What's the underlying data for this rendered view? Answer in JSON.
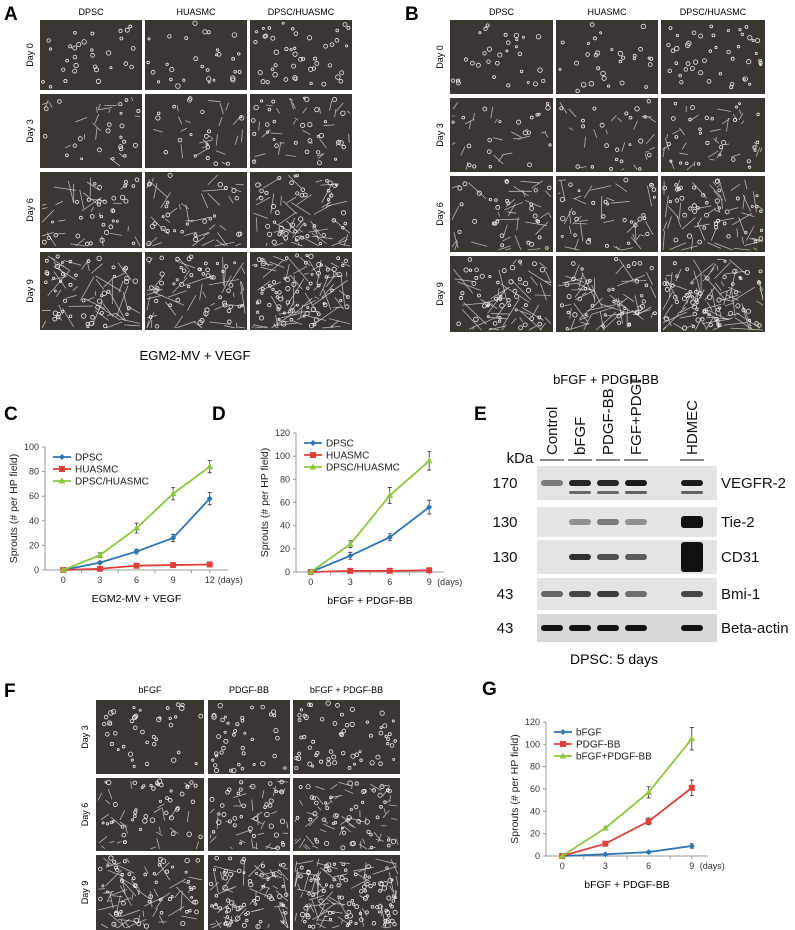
{
  "panels": {
    "A": {
      "label": "A",
      "columns": [
        "DPSC",
        "HUASMC",
        "DPSC/HUASMC"
      ],
      "rows": [
        "Day 0",
        "Day 3",
        "Day 6",
        "Day 9"
      ],
      "caption": "EGM2-MV + VEGF"
    },
    "B": {
      "label": "B",
      "columns": [
        "DPSC",
        "HUASMC",
        "DPSC/HUASMC"
      ],
      "rows": [
        "Day 0",
        "Day 3",
        "Day 6",
        "Day 9"
      ],
      "caption": "bFGF + PDGF-BB"
    },
    "E": {
      "label": "E",
      "kda_label": "kDa",
      "lanes": [
        "Control",
        "bFGF",
        "PDGF-BB",
        "FGF+PDGF",
        "HDMEC"
      ],
      "rows": [
        {
          "protein": "VEGFR-2",
          "kda": "170",
          "band_intensity": [
            0.5,
            0.9,
            0.9,
            0.95,
            0.95
          ]
        },
        {
          "protein": "Tie-2",
          "kda": "130",
          "band_intensity": [
            0.0,
            0.4,
            0.5,
            0.4,
            1.0
          ]
        },
        {
          "protein": "CD31",
          "kda": "130",
          "band_intensity": [
            0.0,
            0.85,
            0.7,
            0.65,
            1.0
          ]
        },
        {
          "protein": "Bmi-1",
          "kda": "43",
          "band_intensity": [
            0.6,
            0.75,
            0.8,
            0.55,
            0.75
          ]
        },
        {
          "protein": "Beta-actin",
          "kda": "43",
          "band_intensity": [
            1.0,
            1.0,
            1.0,
            1.0,
            1.0
          ]
        }
      ],
      "caption": "DPSC: 5 days"
    },
    "F": {
      "label": "F",
      "columns": [
        "bFGF",
        "PDGF-BB",
        "bFGF + PDGF-BB"
      ],
      "rows": [
        "Day 3",
        "Day 6",
        "Day 9"
      ]
    }
  },
  "chart_data": [
    {
      "panel": "C",
      "type": "line",
      "xlabel": "EGM2-MV + VEGF",
      "ylabel": "Sprouts (# per HP field)",
      "x_unit_label": "(days)",
      "x": [
        0,
        3,
        6,
        9,
        12
      ],
      "ylim": [
        0,
        100
      ],
      "yticks": [
        0,
        20,
        40,
        60,
        80,
        100
      ],
      "legend": "top-left",
      "series": [
        {
          "name": "DPSC",
          "color": "#2e75b6",
          "marker": "diamond",
          "values": [
            0,
            6,
            15,
            26,
            58
          ],
          "error": [
            0,
            1,
            2,
            3,
            5
          ]
        },
        {
          "name": "HUASMC",
          "color": "#e0403a",
          "marker": "square",
          "values": [
            0,
            1,
            3.5,
            4,
            4.5
          ],
          "error": [
            0,
            0.5,
            0.5,
            0.5,
            0.5
          ]
        },
        {
          "name": "DPSC/HUASMC",
          "color": "#8dc63f",
          "marker": "triangle",
          "values": [
            0,
            12,
            34,
            62,
            84
          ],
          "error": [
            0,
            2,
            4,
            5,
            5
          ]
        }
      ]
    },
    {
      "panel": "D",
      "type": "line",
      "xlabel": "bFGF + PDGF-BB",
      "ylabel": "Sprouts (# per HP field)",
      "x_unit_label": "(days)",
      "x": [
        0,
        3,
        6,
        9
      ],
      "ylim": [
        0,
        120
      ],
      "yticks": [
        0,
        20,
        40,
        60,
        80,
        100,
        120
      ],
      "legend": "top-left",
      "series": [
        {
          "name": "DPSC",
          "color": "#2e75b6",
          "marker": "diamond",
          "values": [
            0,
            14,
            30,
            56
          ],
          "error": [
            0,
            3,
            3,
            6
          ]
        },
        {
          "name": "HUASMC",
          "color": "#e0403a",
          "marker": "square",
          "values": [
            0,
            1,
            1,
            1.5
          ],
          "error": [
            0,
            0.5,
            0.5,
            0.5
          ]
        },
        {
          "name": "DPSC/HUASMC",
          "color": "#8dc63f",
          "marker": "triangle",
          "values": [
            0,
            24,
            66,
            96
          ],
          "error": [
            0,
            3,
            7,
            8
          ]
        }
      ]
    },
    {
      "panel": "G",
      "type": "line",
      "xlabel": "bFGF + PDGF-BB",
      "ylabel": "Sprouts (# per HP field)",
      "x_unit_label": "(days)",
      "x": [
        0,
        3,
        6,
        9
      ],
      "ylim": [
        0,
        120
      ],
      "yticks": [
        0,
        20,
        40,
        60,
        80,
        100,
        120
      ],
      "legend": "top-left",
      "series": [
        {
          "name": "bFGF",
          "color": "#2e75b6",
          "marker": "diamond",
          "values": [
            0,
            1.5,
            3.5,
            9
          ],
          "error": [
            0,
            0.5,
            1,
            2
          ]
        },
        {
          "name": "PDGF-BB",
          "color": "#e0403a",
          "marker": "square",
          "values": [
            0,
            11,
            31,
            61
          ],
          "error": [
            0,
            1,
            3,
            7
          ]
        },
        {
          "name": "bFGF+PDGF-BB",
          "color": "#8dc63f",
          "marker": "triangle",
          "values": [
            0,
            25,
            57,
            105
          ],
          "error": [
            0,
            1,
            5,
            10
          ]
        }
      ]
    }
  ]
}
